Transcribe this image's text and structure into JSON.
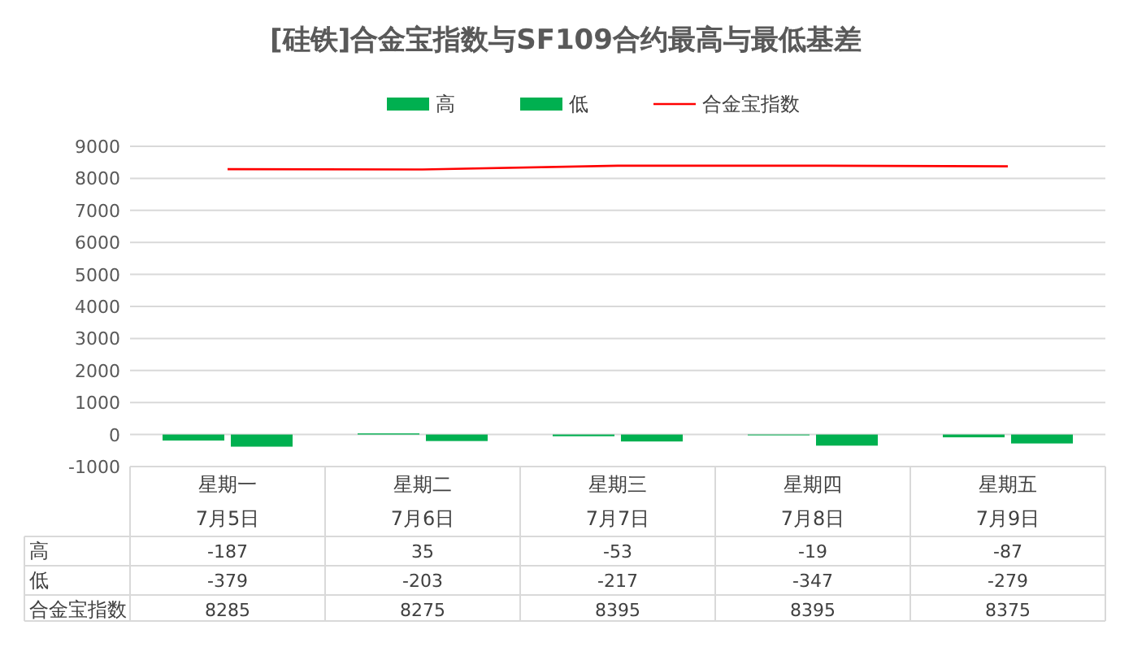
{
  "chart_data": {
    "type": "bar",
    "title": "[硅铁]合金宝指数与SF109合约最高与最低基差",
    "categories": [
      "星期一\n7月5日",
      "星期二\n7月6日",
      "星期三\n7月7日",
      "星期四\n7月8日",
      "星期五\n7月9日"
    ],
    "series": [
      {
        "name": "高",
        "color": "#00b050",
        "values": [
          -187,
          35,
          -53,
          -19,
          -87
        ]
      },
      {
        "name": "低",
        "color": "#00b050",
        "values": [
          -379,
          -203,
          -217,
          -347,
          -279
        ]
      },
      {
        "name": "合金宝指数",
        "type": "line",
        "color": "#ff0000",
        "values": [
          8285,
          8275,
          8395,
          8395,
          8375
        ]
      }
    ],
    "ylim": [
      -1000,
      9000
    ],
    "yticks": [
      -1000,
      0,
      1000,
      2000,
      3000,
      4000,
      5000,
      6000,
      7000,
      8000,
      9000
    ],
    "grid": "y",
    "legend": "top",
    "data_labels": true
  }
}
